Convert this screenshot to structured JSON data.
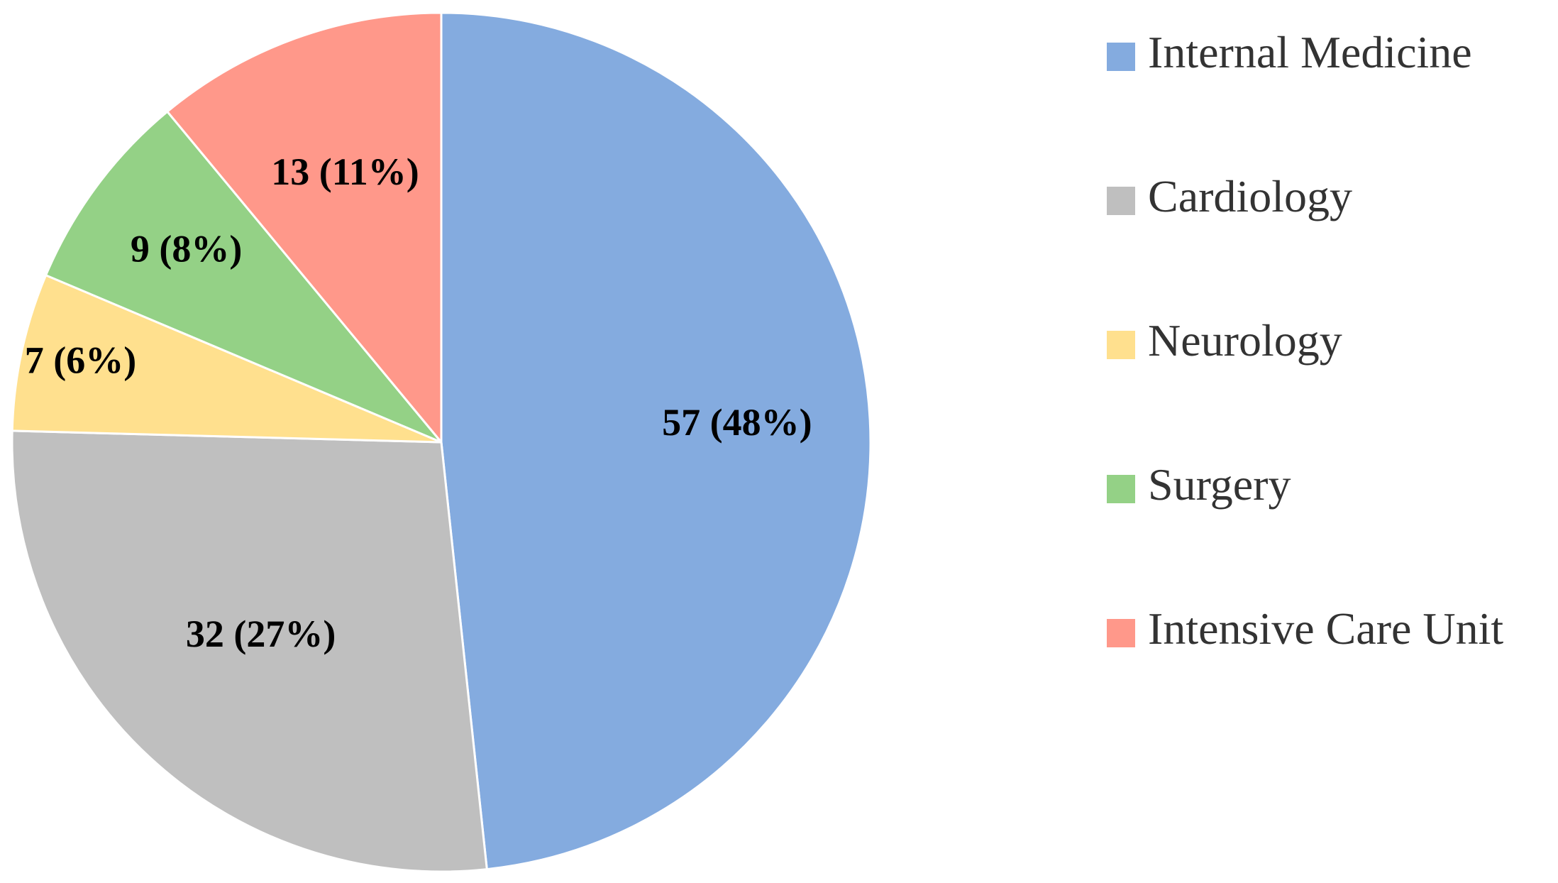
{
  "chart_data": {
    "type": "pie",
    "title": "",
    "categories": [
      "Internal Medicine",
      "Cardiology",
      "Neurology",
      "Surgery",
      "Intensive Care Unit"
    ],
    "values": [
      57,
      32,
      7,
      9,
      13
    ],
    "percent_labels": [
      "57 (48%)",
      "32 (27%)",
      "7 (6%)",
      "9 (8%)",
      "13 (11%)"
    ],
    "colors": [
      "#84ABDF",
      "#BFBFBF",
      "#FFE08E",
      "#94D186",
      "#FF988A"
    ],
    "start_angle": "12 o'clock",
    "direction": "clockwise",
    "legend_position": "right"
  },
  "legend": {
    "items": [
      {
        "label": "Internal Medicine",
        "color": "#84ABDF"
      },
      {
        "label": "Cardiology",
        "color": "#BFBFBF"
      },
      {
        "label": "Neurology",
        "color": "#FFE08E"
      },
      {
        "label": "Surgery",
        "color": "#94D186"
      },
      {
        "label": "Intensive Care Unit",
        "color": "#FF988A"
      }
    ]
  }
}
